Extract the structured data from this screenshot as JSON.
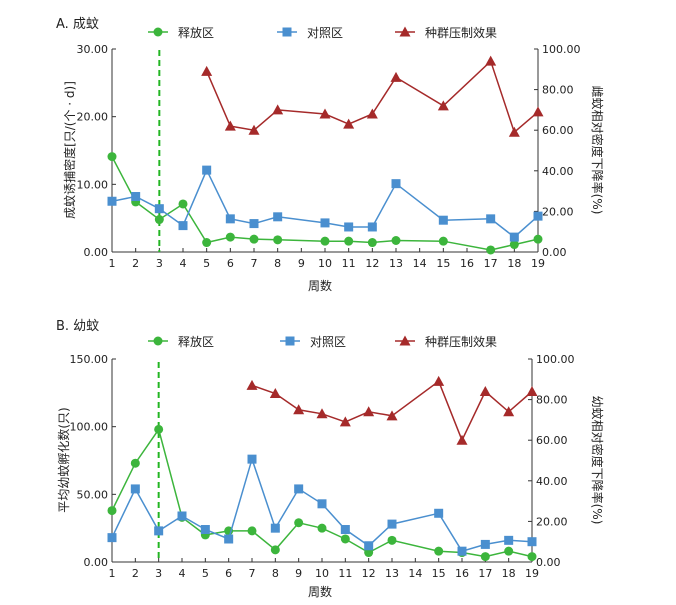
{
  "chart_data": [
    {
      "type": "line",
      "title": "A. 成蚊",
      "xlabel": "周数",
      "ylabel": "成蚊诱捕密度[只/(个 · d)]",
      "y2label": "雌蚊相对密度下降率(%)",
      "ylim": [
        0,
        30
      ],
      "y2lim": [
        0,
        100
      ],
      "yticks": [
        "0.00",
        "10.00",
        "20.00",
        "30.00"
      ],
      "y2ticks": [
        "0.00",
        "20.00",
        "40.00",
        "60.00",
        "80.00",
        "100.00"
      ],
      "xticks": [
        1,
        2,
        3,
        4,
        5,
        6,
        7,
        8,
        9,
        10,
        11,
        12,
        13,
        14,
        15,
        16,
        17,
        18,
        19
      ],
      "release_week": 3,
      "legend": [
        "释放区",
        "对照区",
        "种群压制效果"
      ],
      "series": [
        {
          "name": "释放区",
          "axis": "left",
          "color": "#3cb53c",
          "x": [
            1,
            2,
            3,
            4,
            5,
            6,
            7,
            8,
            10,
            11,
            12,
            13,
            15,
            17,
            18,
            19
          ],
          "y": [
            14.1,
            7.4,
            4.8,
            7.1,
            1.4,
            2.2,
            1.9,
            1.8,
            1.6,
            1.6,
            1.4,
            1.7,
            1.6,
            0.3,
            1.1,
            1.9
          ]
        },
        {
          "name": "对照区",
          "axis": "left",
          "color": "#4a8fcf",
          "x": [
            1,
            2,
            3,
            4,
            5,
            6,
            7,
            8,
            10,
            11,
            12,
            13,
            15,
            17,
            18,
            19
          ],
          "y": [
            7.5,
            8.2,
            6.4,
            3.9,
            12.1,
            4.9,
            4.2,
            5.2,
            4.3,
            3.7,
            3.7,
            10.1,
            4.7,
            4.9,
            2.2,
            5.3
          ]
        },
        {
          "name": "种群压制效果",
          "axis": "right",
          "color": "#a52a2a",
          "x": [
            5,
            6,
            7,
            8,
            10,
            11,
            12,
            13,
            15,
            17,
            18,
            19
          ],
          "y": [
            89,
            62,
            60,
            70,
            68,
            63,
            68,
            86,
            72,
            94,
            59,
            69
          ]
        }
      ]
    },
    {
      "type": "line",
      "title": "B. 幼蚊",
      "xlabel": "周数",
      "ylabel": "平均幼蚊孵化数(只)",
      "y2label": "幼蚊相对密度下降率(%)",
      "ylim": [
        0,
        150
      ],
      "y2lim": [
        0,
        100
      ],
      "yticks": [
        "0.00",
        "50.00",
        "100.00",
        "150.00"
      ],
      "y2ticks": [
        "0.00",
        "20.00",
        "40.00",
        "60.00",
        "80.00",
        "100.00"
      ],
      "xticks": [
        1,
        2,
        3,
        4,
        5,
        6,
        7,
        8,
        9,
        10,
        11,
        12,
        13,
        14,
        15,
        16,
        17,
        18,
        19
      ],
      "release_week": 3,
      "legend": [
        "释放区",
        "对照区",
        "种群压制效果"
      ],
      "series": [
        {
          "name": "释放区",
          "axis": "left",
          "color": "#3cb53c",
          "x": [
            1,
            2,
            3,
            4,
            5,
            6,
            7,
            8,
            9,
            10,
            11,
            12,
            13,
            15,
            16,
            17,
            18,
            19
          ],
          "y": [
            38,
            73,
            98,
            33,
            20,
            23,
            23,
            9,
            29,
            25,
            17,
            7,
            16,
            8,
            7,
            4,
            8,
            4
          ]
        },
        {
          "name": "对照区",
          "axis": "left",
          "color": "#4a8fcf",
          "x": [
            1,
            2,
            3,
            4,
            5,
            6,
            7,
            8,
            9,
            10,
            11,
            12,
            13,
            15,
            16,
            17,
            18,
            19
          ],
          "y": [
            18,
            54,
            23,
            34,
            24,
            17,
            76,
            25,
            54,
            43,
            24,
            12,
            28,
            36,
            8,
            13,
            16,
            15
          ]
        },
        {
          "name": "种群压制效果",
          "axis": "right",
          "color": "#a52a2a",
          "x": [
            7,
            8,
            9,
            10,
            11,
            12,
            13,
            15,
            16,
            17,
            18,
            19
          ],
          "y": [
            87,
            83,
            75,
            73,
            69,
            74,
            72,
            89,
            60,
            84,
            74,
            84
          ]
        }
      ]
    }
  ]
}
